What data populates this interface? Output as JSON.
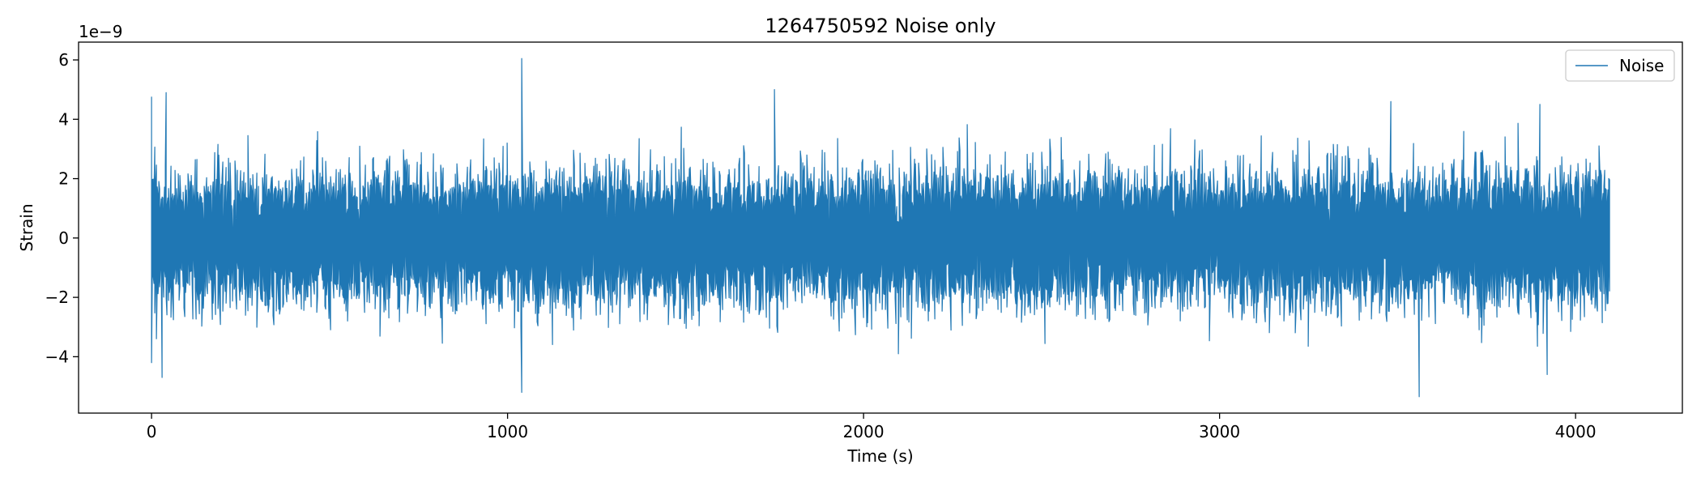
{
  "chart_data": {
    "type": "line",
    "title": "1264750592 Noise only",
    "xlabel": "Time (s)",
    "ylabel": "Strain",
    "y_offset_label": "1e−9",
    "xlim": [
      -205,
      4300
    ],
    "ylim": [
      -5.9,
      6.6
    ],
    "xticks": [
      0,
      1000,
      2000,
      3000,
      4000
    ],
    "xtick_labels": [
      "0",
      "1000",
      "2000",
      "3000",
      "4000"
    ],
    "yticks": [
      -4,
      -2,
      0,
      2,
      4,
      6
    ],
    "ytick_labels": [
      "−4",
      "−2",
      "0",
      "2",
      "4",
      "6"
    ],
    "legend": {
      "placement": "top-right",
      "entries": [
        "Noise"
      ]
    },
    "grid": false,
    "series": [
      {
        "name": "Noise",
        "color": "#1f77b4",
        "x_range": [
          0,
          4096
        ],
        "typical_amplitude": 1.0,
        "approx_envelope": [
          -3.3,
          3.3
        ],
        "extremes": [
          {
            "x": 0,
            "y": 4.75
          },
          {
            "x": 40,
            "y": 4.9
          },
          {
            "x": 0,
            "y": -4.2
          },
          {
            "x": 30,
            "y": -4.7
          },
          {
            "x": 1040,
            "y": 6.05
          },
          {
            "x": 1040,
            "y": -5.2
          },
          {
            "x": 1750,
            "y": 5.0
          },
          {
            "x": 3560,
            "y": -5.35
          },
          {
            "x": 3480,
            "y": 4.6
          },
          {
            "x": 3900,
            "y": 4.5
          },
          {
            "x": 3920,
            "y": -4.6
          }
        ]
      }
    ]
  }
}
